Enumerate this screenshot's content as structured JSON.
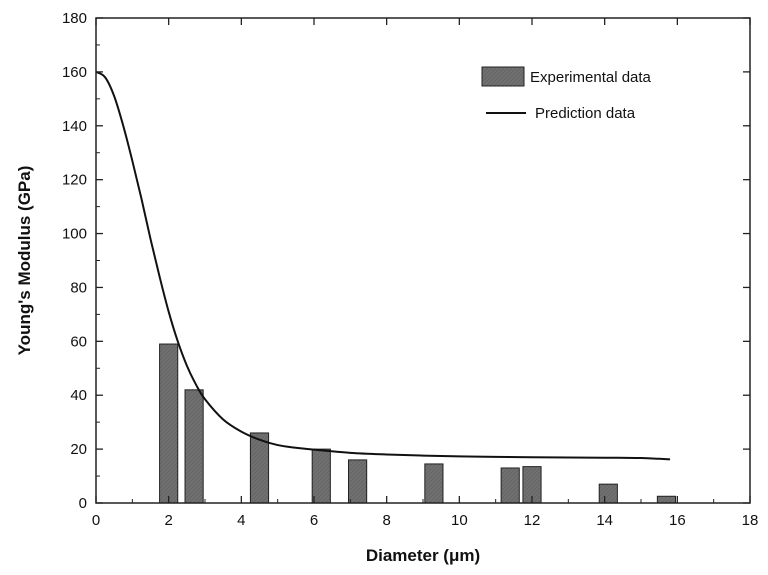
{
  "chart_data": {
    "type": "bar",
    "xlabel": "Diameter (μm)",
    "ylabel": "Young's Modulus (GPa)",
    "xlim": [
      0,
      18
    ],
    "ylim": [
      0,
      180
    ],
    "x_ticks": [
      0,
      2,
      4,
      6,
      8,
      10,
      12,
      14,
      16,
      18
    ],
    "y_ticks": [
      0,
      20,
      40,
      60,
      80,
      100,
      120,
      140,
      160,
      180
    ],
    "grid": false,
    "legend_position": "top-right",
    "series": [
      {
        "name": "Experimental data",
        "type": "bar",
        "bar_width": 0.5,
        "x": [
          2.0,
          2.7,
          4.5,
          6.2,
          7.2,
          9.3,
          11.4,
          12.0,
          14.1,
          15.7
        ],
        "values": [
          59,
          42,
          26,
          20,
          16,
          14.5,
          13,
          13.5,
          7,
          2.5
        ],
        "color": "#707070"
      },
      {
        "name": "Prediction data",
        "type": "line",
        "x": [
          0,
          0.25,
          0.5,
          0.75,
          1.0,
          1.25,
          1.5,
          1.75,
          2.0,
          2.25,
          2.5,
          2.75,
          3.0,
          3.5,
          4.0,
          4.5,
          5.0,
          5.5,
          6.0,
          7.0,
          8.0,
          9.0,
          10.0,
          11.0,
          12.0,
          13.0,
          14.0,
          15.0,
          15.5,
          15.8
        ],
        "y": [
          160,
          158,
          151,
          140,
          127,
          113,
          98,
          84,
          71,
          60,
          51,
          44,
          38.5,
          31,
          26.5,
          23.5,
          21.5,
          20.5,
          19.8,
          18.6,
          18.0,
          17.6,
          17.3,
          17.1,
          17.0,
          16.9,
          16.8,
          16.7,
          16.4,
          16.2
        ],
        "color": "#111111"
      }
    ]
  }
}
